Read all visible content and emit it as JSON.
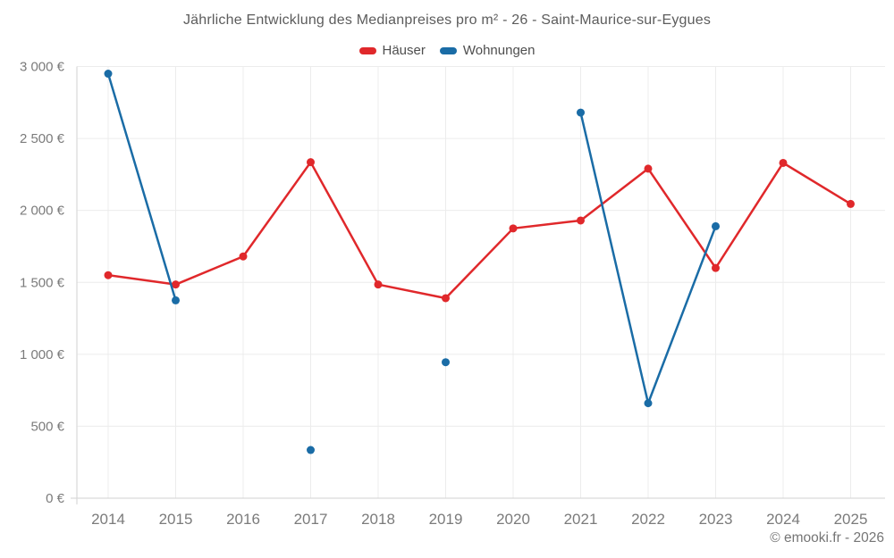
{
  "footer": {
    "copyright": "© emooki.fr - 2026"
  },
  "theme": {
    "grid_color": "#ececec",
    "axis_color": "#d9d9d9",
    "tick_text_color": "#7b7b7b",
    "title_color": "#5c5c5c",
    "house_color": "#e0282b",
    "apartment_color": "#1a6ca6"
  },
  "chart_data": {
    "type": "line",
    "title": "Jährliche Entwicklung des Medianpreises pro m² - 26 - Saint-Maurice-sur-Eygues",
    "xlabel": "",
    "ylabel": "",
    "currency": "€",
    "grid": true,
    "legend_position": "top",
    "x": [
      "2014",
      "2015",
      "2016",
      "2017",
      "2018",
      "2019",
      "2020",
      "2021",
      "2022",
      "2023",
      "2024",
      "2025"
    ],
    "series": [
      {
        "name": "Häuser",
        "color": "#e0282b",
        "values": [
          1550,
          1485,
          1680,
          2335,
          1485,
          1390,
          1875,
          1930,
          2290,
          1600,
          2330,
          2045
        ]
      },
      {
        "name": "Wohnungen",
        "color": "#1a6ca6",
        "values": [
          2950,
          1375,
          null,
          335,
          null,
          945,
          null,
          2680,
          660,
          1890,
          null,
          null
        ]
      }
    ],
    "ylim": [
      0,
      3000
    ],
    "y_ticks": [
      {
        "value": 0,
        "label": "0 €"
      },
      {
        "value": 500,
        "label": "500 €"
      },
      {
        "value": 1000,
        "label": "1 000 €"
      },
      {
        "value": 1500,
        "label": "1 500 €"
      },
      {
        "value": 2000,
        "label": "2 000 €"
      },
      {
        "value": 2500,
        "label": "2 500 €"
      },
      {
        "value": 3000,
        "label": "3 000 €"
      }
    ]
  }
}
